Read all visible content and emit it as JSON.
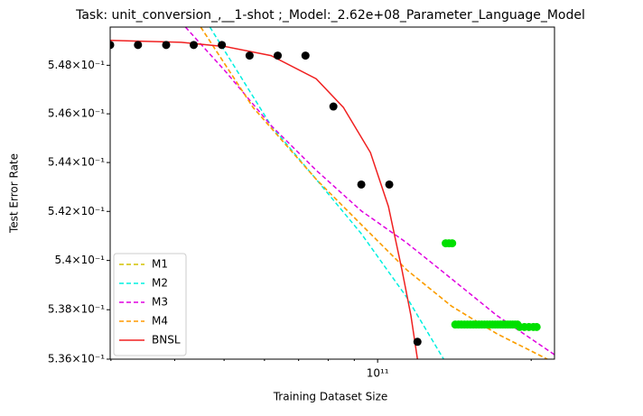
{
  "chart_data": {
    "type": "scatter-lines",
    "title": "Task: unit_conversion_,__1-shot ;_Model:_2.62e+08_Parameter_Language_Model",
    "x_label": "Training Dataset Size",
    "y_label": "Test Error Rate",
    "xscale": "log",
    "yscale": "log",
    "xlim": [
      29900000000.0,
      222200000000.0
    ],
    "ylim": [
      0.536,
      0.54958
    ],
    "xticks": [
      {
        "value": 100000000000.0,
        "label": "10¹¹"
      }
    ],
    "xminorticks": [
      30000000000.0,
      40000000000.0,
      50000000000.0,
      60000000000.0,
      70000000000.0,
      80000000000.0,
      90000000000.0,
      200000000000.0
    ],
    "yticks": [
      {
        "value": 0.536,
        "label": "5.36×10⁻¹"
      },
      {
        "value": 0.538,
        "label": "5.38×10⁻¹"
      },
      {
        "value": 0.54,
        "label": "5.4×10⁻¹"
      },
      {
        "value": 0.542,
        "label": "5.42×10⁻¹"
      },
      {
        "value": 0.544,
        "label": "5.44×10⁻¹"
      },
      {
        "value": 0.546,
        "label": "5.46×10⁻¹"
      },
      {
        "value": 0.548,
        "label": "5.48×10⁻¹"
      }
    ],
    "legend": "lower left",
    "points": [
      {
        "color": "#000000",
        "x": [
          29900000000.0,
          33900000000.0,
          38500000000.0,
          43600000000.0,
          49500000000.0,
          56100000000.0,
          63700000000.0,
          72200000000.0,
          81900000000.0,
          92900000000.0,
          105400000000.0,
          119700000000.0
        ],
        "values": [
          0.54884,
          0.54884,
          0.54884,
          0.54884,
          0.54884,
          0.5484,
          0.5484,
          0.5484,
          0.5463,
          0.5431,
          0.5431,
          0.5367
        ]
      },
      {
        "color": "#00e000",
        "x": [
          136000000000.0,
          138000000000.0,
          140000000000.0,
          142000000000.0,
          144000000000.0,
          146000000000.0,
          148000000000.0,
          150000000000.0,
          152000000000.0,
          154000000000.0,
          156000000000.0,
          158000000000.0,
          160000000000.0,
          162000000000.0,
          164000000000.0,
          166000000000.0,
          168000000000.0,
          170000000000.0,
          172000000000.0,
          174000000000.0,
          176000000000.0,
          178000000000.0,
          180000000000.0,
          182000000000.0,
          184000000000.0,
          186000000000.0,
          188000000000.0,
          190000000000.0,
          194000000000.0,
          198000000000.0,
          202000000000.0,
          205000000000.0
        ],
        "values": [
          0.5407,
          0.5407,
          0.5407,
          0.5374,
          0.5374,
          0.5374,
          0.5374,
          0.5374,
          0.5374,
          0.5374,
          0.5374,
          0.5374,
          0.5374,
          0.5374,
          0.5374,
          0.5374,
          0.5374,
          0.5374,
          0.5374,
          0.5374,
          0.5374,
          0.5374,
          0.5374,
          0.5374,
          0.5374,
          0.5374,
          0.5374,
          0.5373,
          0.5373,
          0.5373,
          0.5373,
          0.5373
        ]
      }
    ],
    "series": [
      {
        "name": "M1",
        "color": "#d4c200",
        "dashed": true,
        "x": [
          45000000000.0,
          57000000000.0,
          75800000000.0,
          92900000000.0,
          114000000000.0,
          139700000000.0,
          171200000000.0,
          215100000000.0
        ],
        "values": [
          0.54958,
          0.54626,
          0.54331,
          0.54146,
          0.53962,
          0.53814,
          0.53703,
          0.536
        ]
      },
      {
        "name": "M2",
        "color": "#00f0e0",
        "dashed": true,
        "x": [
          46900000000.0,
          61800000000.0,
          75800000000.0,
          92900000000.0,
          114000000000.0,
          134700000000.0
        ],
        "values": [
          0.54958,
          0.54552,
          0.54331,
          0.54109,
          0.53851,
          0.536
        ]
      },
      {
        "name": "M3",
        "color": "#e000e0",
        "dashed": true,
        "x": [
          42000000000.0,
          50400000000.0,
          61800000000.0,
          75800000000.0,
          92900000000.0,
          114000000000.0,
          139700000000.0,
          171200000000.0,
          222200000000.0
        ],
        "values": [
          0.54958,
          0.54773,
          0.54552,
          0.54368,
          0.54202,
          0.54072,
          0.53925,
          0.53777,
          0.53618
        ]
      },
      {
        "name": "M4",
        "color": "#ff9a00",
        "dashed": true,
        "x": [
          45000000000.0,
          57000000000.0,
          75800000000.0,
          92900000000.0,
          114000000000.0,
          139700000000.0,
          171200000000.0,
          215100000000.0
        ],
        "values": [
          0.54958,
          0.54626,
          0.54331,
          0.54146,
          0.53962,
          0.53814,
          0.53703,
          0.536
        ]
      },
      {
        "name": "BNSL",
        "color": "#f02020",
        "dashed": false,
        "x": [
          29900000000.0,
          41200000000.0,
          50400000000.0,
          61800000000.0,
          75800000000.0,
          85700000000.0,
          96800000000.0,
          105000000000.0,
          111600000000.0,
          116200000000.0,
          119700000000.0
        ],
        "values": [
          0.54903,
          0.54895,
          0.54877,
          0.5484,
          0.54744,
          0.54626,
          0.54441,
          0.5422,
          0.53962,
          0.53777,
          0.536
        ]
      }
    ]
  }
}
